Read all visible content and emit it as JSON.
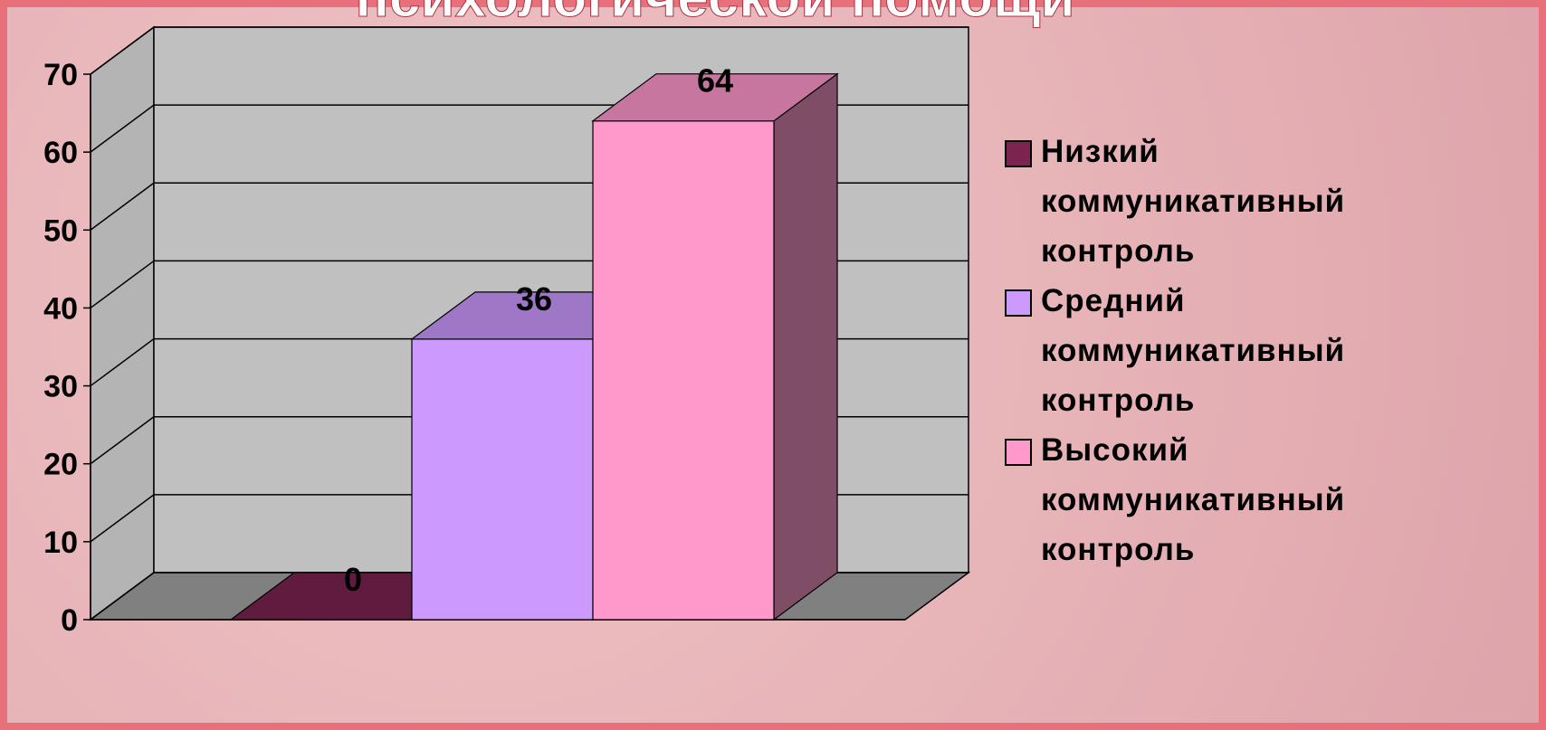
{
  "chart_data": {
    "type": "bar3d",
    "title": "психологической помощи",
    "categories": [
      ""
    ],
    "series": [
      {
        "name": "Низкий коммуникативный контроль",
        "color": "#7b2450",
        "values": [
          0
        ]
      },
      {
        "name": "Средний коммуникативный контроль",
        "color": "#cc99ff",
        "values": [
          36
        ]
      },
      {
        "name": "Высокий коммуникативный контроль",
        "color": "#ff99cc",
        "values": [
          64
        ]
      }
    ],
    "ylim": [
      0,
      70
    ],
    "yticks": [
      0,
      10,
      20,
      30,
      40,
      50,
      60,
      70
    ],
    "grid": true,
    "legend": "right"
  }
}
